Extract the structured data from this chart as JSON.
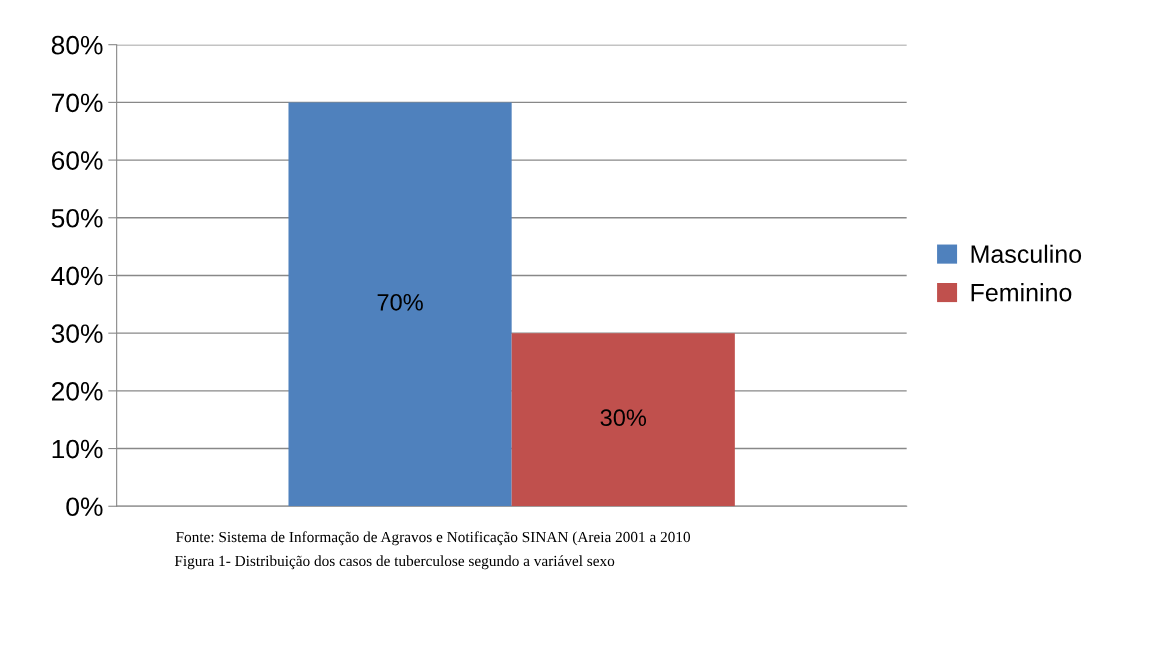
{
  "chart_data": {
    "type": "bar",
    "categories": [
      null
    ],
    "series": [
      {
        "name": "Masculino",
        "color": "#4f81bd",
        "values": [
          70
        ],
        "value_labels": [
          "70%"
        ]
      },
      {
        "name": "Feminino",
        "color": "#c0504d",
        "values": [
          30
        ],
        "value_labels": [
          "30%"
        ]
      }
    ],
    "ylim": [
      0,
      80
    ],
    "yticks": [
      {
        "value": 0,
        "label": "0%"
      },
      {
        "value": 10,
        "label": "10%"
      },
      {
        "value": 20,
        "label": "20%"
      },
      {
        "value": 30,
        "label": "30%"
      },
      {
        "value": 40,
        "label": "40%"
      },
      {
        "value": 50,
        "label": "50%"
      },
      {
        "value": 60,
        "label": "60%"
      },
      {
        "value": 70,
        "label": "70%"
      },
      {
        "value": 80,
        "label": "80%"
      }
    ],
    "grid": "y",
    "legend": "right",
    "annotations": [
      "Fonte: Sistema de Informação de Agravos e Notificação SINAN (Areia 2001 a 2010",
      "Figura 1- Distribuição dos casos de tuberculose segundo a variável sexo"
    ]
  }
}
